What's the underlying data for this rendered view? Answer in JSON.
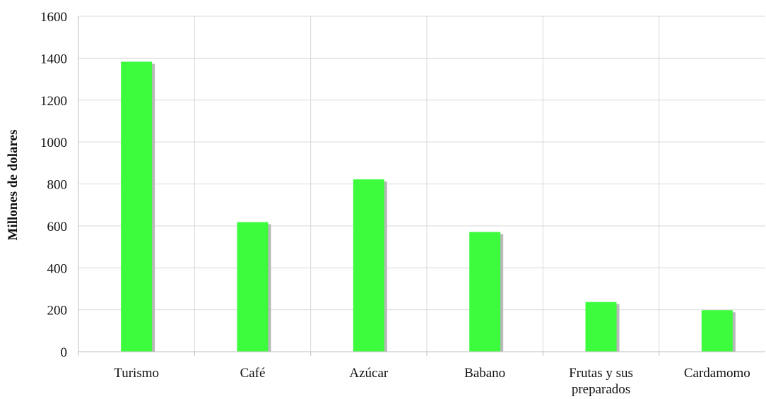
{
  "chart_data": {
    "type": "bar",
    "title": "",
    "xlabel": "",
    "ylabel": "Millones de dolares",
    "categories": [
      "Turismo",
      "Café",
      "Azúcar",
      "Babano",
      "Frutas y sus preparados",
      "Cardamomo"
    ],
    "category_label_lines": [
      [
        "Turismo"
      ],
      [
        "Café"
      ],
      [
        "Azúcar"
      ],
      [
        "Babano"
      ],
      [
        "Frutas y sus",
        "preparados"
      ],
      [
        "Cardamomo"
      ]
    ],
    "values": [
      1383,
      618,
      822,
      571,
      237,
      198
    ],
    "ylim": [
      0,
      1600
    ],
    "yticks": [
      0,
      200,
      400,
      600,
      800,
      1000,
      1200,
      1400,
      1600
    ],
    "grid": true,
    "legend": "none",
    "colors": {
      "bar": "#3dfc3d",
      "shadow": "#b9b9b9",
      "grid": "#d9d9d9",
      "axis": "#bfbfbf"
    }
  }
}
